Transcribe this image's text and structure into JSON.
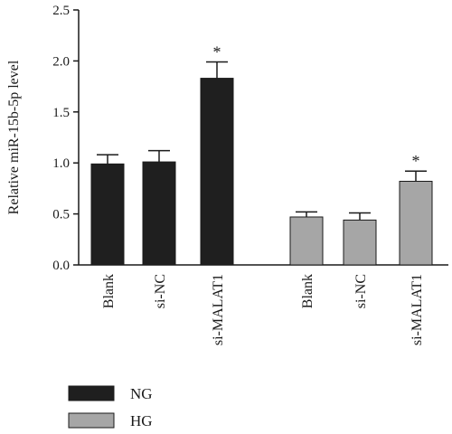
{
  "chart_data": {
    "type": "bar",
    "title": "",
    "xlabel": "",
    "ylabel": "Relative miR-15b-5p level",
    "ylim": [
      0,
      2.5
    ],
    "yticks": [
      "0.0",
      "0.5",
      "1.0",
      "1.5",
      "2.0",
      "2.5"
    ],
    "grid": false,
    "legend_position": "bottom-left",
    "groups": [
      {
        "name": "NG",
        "color": "#1f1f1f",
        "categories": [
          "Blank",
          "si-NC",
          "si-MALAT1"
        ],
        "values": [
          0.99,
          1.01,
          1.83
        ],
        "errors": [
          0.09,
          0.11,
          0.16
        ],
        "significance": [
          "",
          "",
          "*"
        ]
      },
      {
        "name": "HG",
        "color": "#a6a6a6",
        "categories": [
          "Blank",
          "si-NC",
          "si-MALAT1"
        ],
        "values": [
          0.47,
          0.44,
          0.82
        ],
        "errors": [
          0.05,
          0.07,
          0.1
        ],
        "significance": [
          "",
          "",
          "*"
        ]
      }
    ]
  }
}
